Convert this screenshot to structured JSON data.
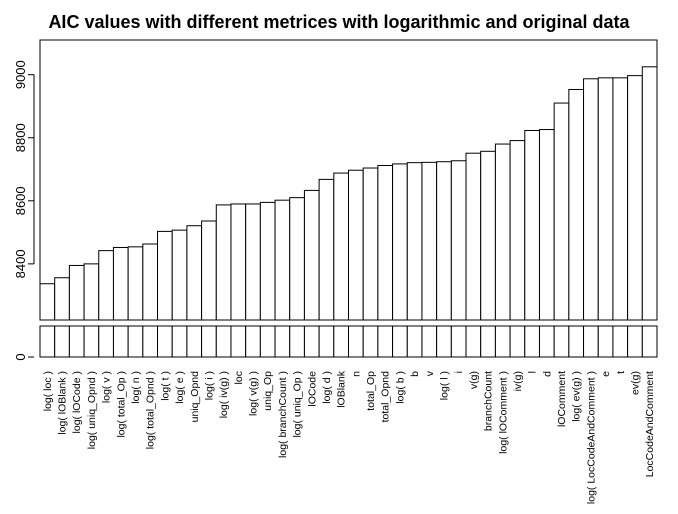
{
  "chart_data": {
    "type": "bar",
    "title": "AIC values with different metrices with logarithmic and original data",
    "xlabel": "",
    "ylabel": "",
    "ylim": [
      8222,
      9110
    ],
    "axis_break": true,
    "lower_panel_ylim": [
      0,
      20
    ],
    "yticks": [
      8400,
      8600,
      8800,
      9000
    ],
    "lower_panel_ticks": [
      0
    ],
    "grid": false,
    "categories": [
      "log( loc )",
      "log( lOBlank )",
      "log( lOCode )",
      "log( uniq_Opnd )",
      "log( v )",
      "log( total_Op )",
      "log( n )",
      "log( total_Opnd )",
      "log( t )",
      "log( e )",
      "uniq_Opnd",
      "log( i )",
      "log( iv(g) )",
      "loc",
      "log( v(g) )",
      "uniq_Op",
      "log( branchCount )",
      "log( uniq_Op )",
      "lOCode",
      "log( d )",
      "lOBlank",
      "n",
      "total_Op",
      "total_Opnd",
      "log( b )",
      "b",
      "v",
      "log( l )",
      "i",
      "v(g)",
      "branchCount",
      "log( lOComment )",
      "iv(g)",
      "l",
      "d",
      "lOComment",
      "log( ev(g) )",
      "log( LocCodeAndComment )",
      "e",
      "t",
      "ev(g)",
      "LocCodeAndComment"
    ],
    "values": [
      8337,
      8356,
      8395,
      8400,
      8442,
      8452,
      8454,
      8463,
      8503,
      8507,
      8521,
      8536,
      8587,
      8590,
      8590,
      8595,
      8602,
      8610,
      8633,
      8668,
      8688,
      8697,
      8704,
      8712,
      8717,
      8721,
      8722,
      8724,
      8727,
      8751,
      8757,
      8780,
      8791,
      8823,
      8826,
      8910,
      8953,
      8987,
      8990,
      8990,
      8997,
      9025
    ]
  }
}
